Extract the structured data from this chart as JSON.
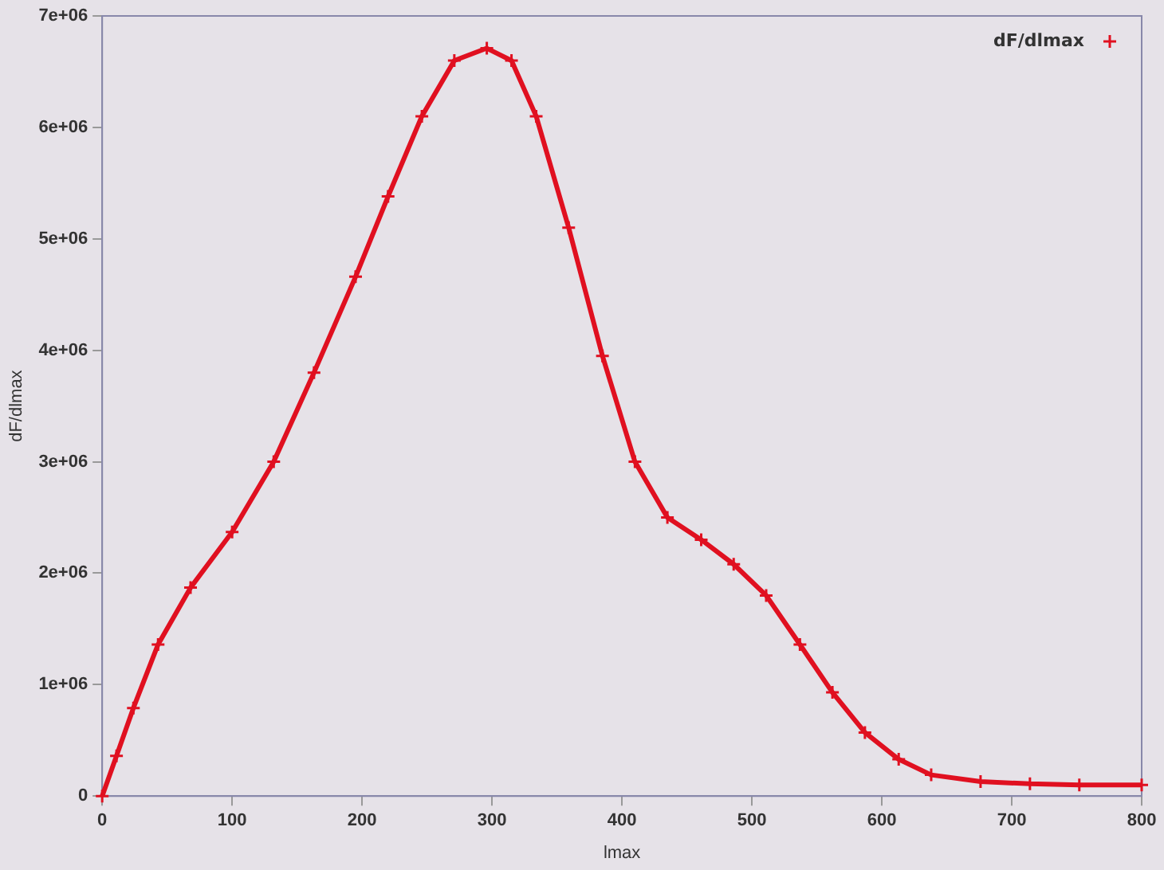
{
  "chart_data": {
    "type": "line",
    "xlabel": "lmax",
    "ylabel": "dF/dlmax",
    "x": [
      0,
      11,
      24,
      43,
      68,
      100,
      132,
      163,
      195,
      220,
      246,
      271,
      296,
      315,
      334,
      359,
      385,
      410,
      435,
      461,
      486,
      511,
      537,
      562,
      587,
      613,
      638,
      676,
      714,
      752,
      800
    ],
    "series": [
      {
        "name": "dF/dlmax",
        "color": "#e01020",
        "values": [
          0,
          360000,
          790000,
          1360000,
          1870000,
          2370000,
          3000000,
          3800000,
          4660000,
          5380000,
          6100000,
          6600000,
          6710000,
          6600000,
          6100000,
          5100000,
          3950000,
          3000000,
          2500000,
          2300000,
          2080000,
          1800000,
          1360000,
          930000,
          570000,
          330000,
          190000,
          130000,
          110000,
          100000,
          100000
        ]
      }
    ],
    "xlim": [
      0,
      800
    ],
    "xticks": [
      0,
      100,
      200,
      300,
      400,
      500,
      600,
      700,
      800
    ],
    "ylim": [
      0,
      7000000
    ],
    "yticks": [
      {
        "value": 0,
        "label": "0"
      },
      {
        "value": 1000000,
        "label": "1e+06"
      },
      {
        "value": 2000000,
        "label": "2e+06"
      },
      {
        "value": 3000000,
        "label": "3e+06"
      },
      {
        "value": 4000000,
        "label": "4e+06"
      },
      {
        "value": 5000000,
        "label": "5e+06"
      },
      {
        "value": 6000000,
        "label": "6e+06"
      },
      {
        "value": 7000000,
        "label": "7e+06"
      }
    ],
    "grid": false,
    "legend": "top right",
    "marker": "cross",
    "line_style": "solid"
  }
}
